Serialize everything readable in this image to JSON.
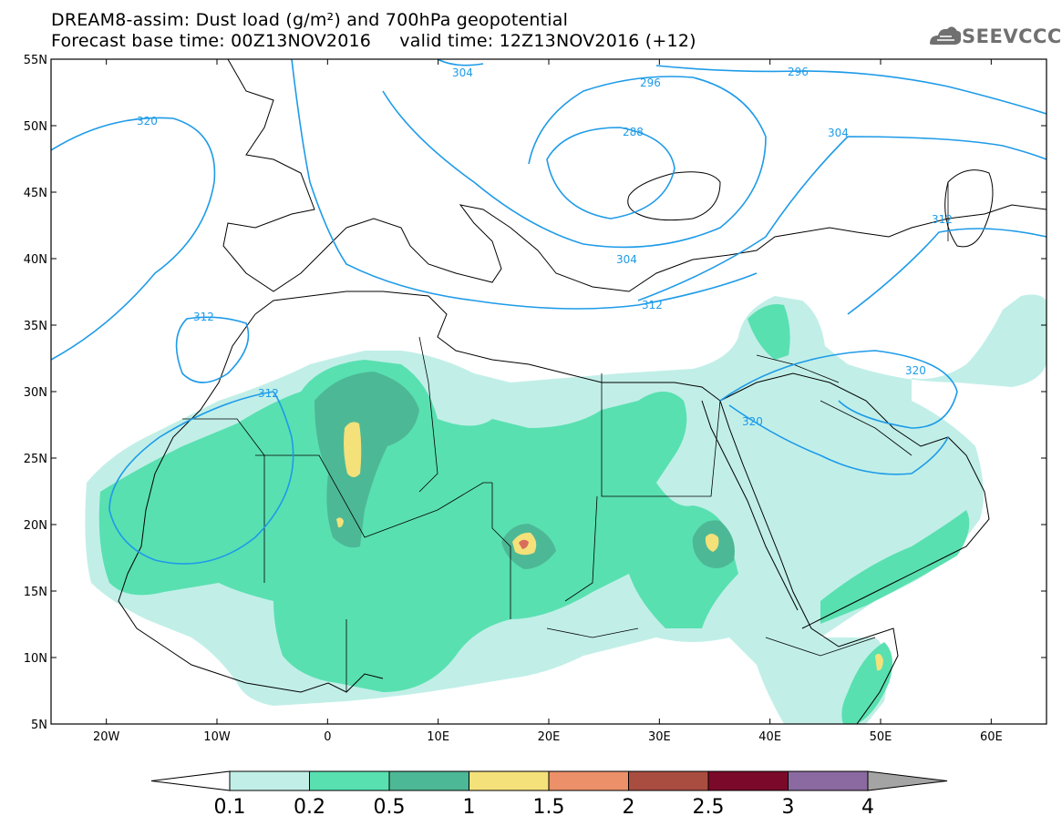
{
  "header": {
    "title_line1": "DREAM8-assim: Dust load (g/m²) and 700hPa geopotential",
    "title_line2": "Forecast base time: 00Z13NOV2016     valid time: 12Z13NOV2016 (+12)",
    "logo_text": "SEEVCCC"
  },
  "map": {
    "lat_labels": [
      "55N",
      "50N",
      "45N",
      "40N",
      "35N",
      "30N",
      "25N",
      "20N",
      "15N",
      "10N",
      "5N"
    ],
    "lon_labels": [
      "20W",
      "10W",
      "0",
      "10E",
      "20E",
      "30E",
      "40E",
      "50E",
      "60E"
    ],
    "contour_labels": [
      "304",
      "296",
      "296",
      "288",
      "304",
      "312",
      "304",
      "312",
      "320",
      "312",
      "312",
      "320",
      "320"
    ],
    "contour_color": "#1e9be8",
    "coast_color": "#000000"
  },
  "colorbar": {
    "colors": [
      "#c1efe8",
      "#59e0b0",
      "#4db896",
      "#f4e17a",
      "#eb9069",
      "#a94d41",
      "#7b0a2a",
      "#8a6aa0",
      "#a4a4a4"
    ],
    "labels": [
      "0.1",
      "0.2",
      "0.5",
      "1",
      "1.5",
      "2",
      "2.5",
      "3",
      "4"
    ]
  }
}
